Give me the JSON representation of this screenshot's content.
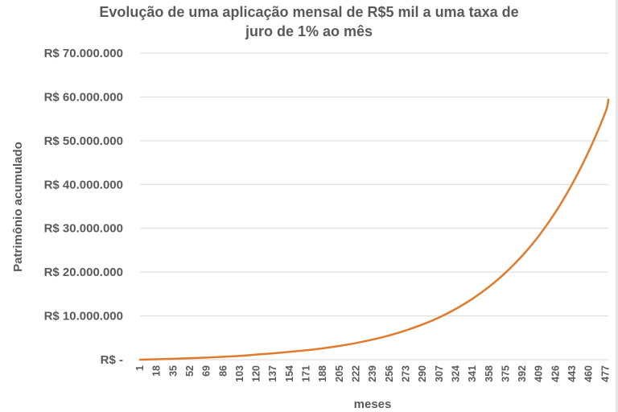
{
  "chart_data": {
    "type": "line",
    "title_line1": "Evolução de uma aplicação mensal de R$5 mil a uma taxa de",
    "title_line2": "juro de 1% ao mês",
    "xlabel": "meses",
    "ylabel": "Patrimônio acumulado",
    "ylim": [
      0,
      70000000
    ],
    "grid": true,
    "legend": "none",
    "y_tick_labels": [
      "R$ -",
      "R$ 10.000.000",
      "R$ 20.000.000",
      "R$ 30.000.000",
      "R$ 40.000.000",
      "R$ 50.000.000",
      "R$ 60.000.000",
      "R$ 70.000.000"
    ],
    "y_tick_values": [
      0,
      10000000,
      20000000,
      30000000,
      40000000,
      50000000,
      60000000,
      70000000
    ],
    "x_tick_labels": [
      "1",
      "18",
      "35",
      "52",
      "69",
      "86",
      "103",
      "120",
      "137",
      "154",
      "171",
      "188",
      "205",
      "222",
      "239",
      "256",
      "273",
      "290",
      "307",
      "324",
      "341",
      "358",
      "375",
      "392",
      "409",
      "426",
      "443",
      "460",
      "477"
    ],
    "x_range": [
      1,
      480
    ],
    "series": [
      {
        "color": "#e07b2e",
        "x": [
          1,
          18,
          35,
          52,
          69,
          86,
          103,
          120,
          137,
          154,
          171,
          188,
          205,
          222,
          239,
          256,
          273,
          290,
          307,
          324,
          341,
          358,
          375,
          392,
          409,
          426,
          443,
          460,
          477,
          480
        ],
        "y": [
          5050,
          98080,
          207480,
          336200,
          487600,
          665700,
          875100,
          1161000,
          1450000,
          1800000,
          2150000,
          2600000,
          3150000,
          3800000,
          4600000,
          5550000,
          6700000,
          8050000,
          9650000,
          11600000,
          13900000,
          16650000,
          19900000,
          23750000,
          28300000,
          33700000,
          40100000,
          47600000,
          56500000,
          59400000
        ]
      }
    ]
  }
}
